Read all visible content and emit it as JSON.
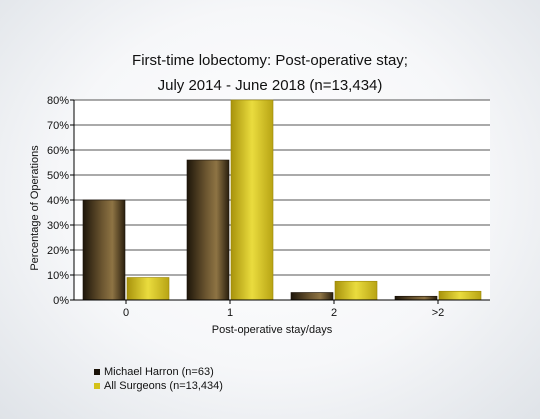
{
  "chart_data": {
    "type": "bar",
    "title_line1": "First-time lobectomy: Post-operative stay;",
    "title_line2": "July 2014 - June 2018 (n=13,434)",
    "xlabel": "Post-operative stay/days",
    "ylabel": "Percentage of Operations",
    "categories": [
      "0",
      "1",
      "2",
      ">2"
    ],
    "yticks": [
      "0%",
      "10%",
      "20%",
      "30%",
      "40%",
      "50%",
      "60%",
      "70%",
      "80%"
    ],
    "ylim": [
      0,
      80
    ],
    "grid": true,
    "legend_position": "bottom-left",
    "series": [
      {
        "name": "Michael Harron (n=63)",
        "values": [
          40,
          56,
          3,
          1.5
        ],
        "color": "#3a2a14"
      },
      {
        "name": "All Surgeons (n=13,434)",
        "values": [
          9,
          80,
          7.5,
          3.5
        ],
        "color": "#d4c21a"
      }
    ]
  }
}
